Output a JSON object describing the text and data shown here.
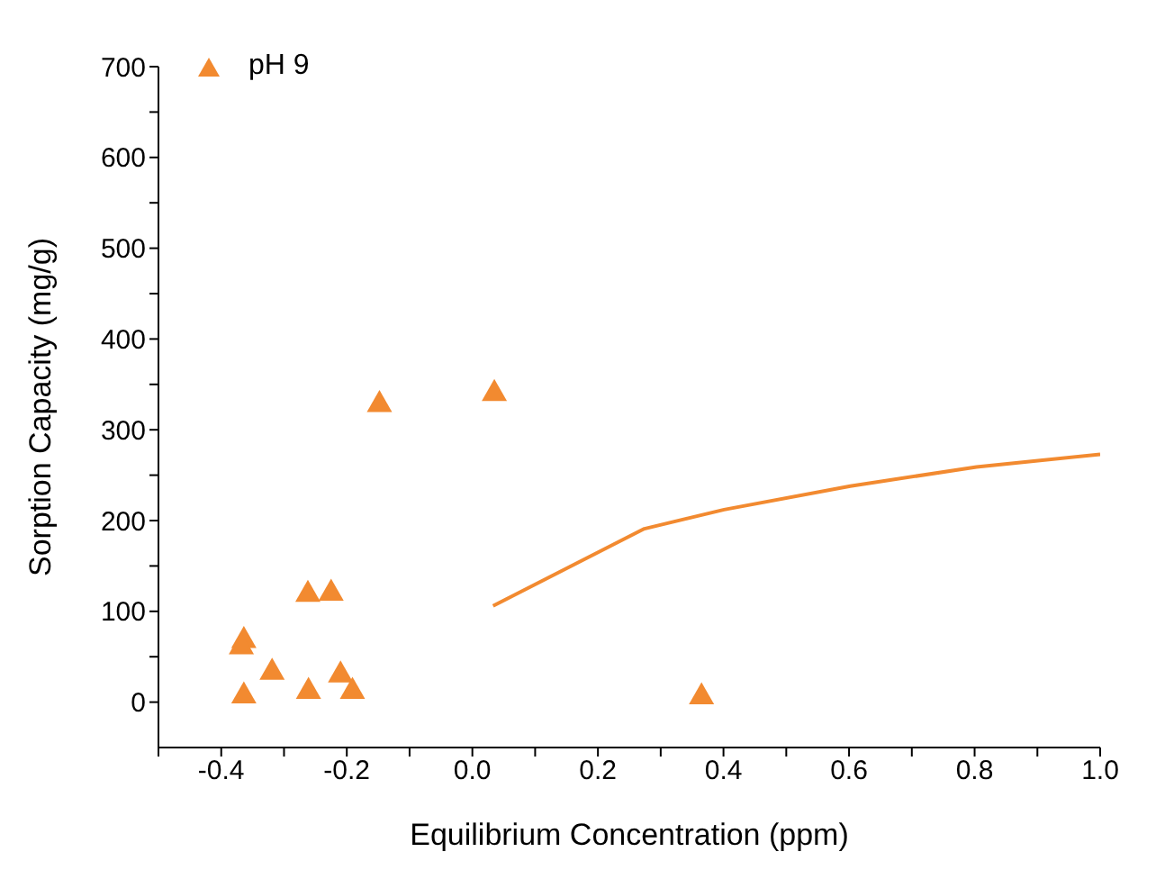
{
  "chart_data": {
    "type": "scatter",
    "xlabel": "Equilibrium Concentration (ppm)",
    "ylabel": "Sorption Capacity (mg/g)",
    "xlim": [
      -0.5,
      1.0
    ],
    "xticks": [
      {
        "value": -0.5,
        "label": null
      },
      {
        "value": -0.4,
        "label": "-0.4"
      },
      {
        "value": -0.3,
        "label": null
      },
      {
        "value": -0.2,
        "label": "-0.2"
      },
      {
        "value": -0.1,
        "label": null
      },
      {
        "value": 0,
        "label": "0.0"
      },
      {
        "value": 0.1,
        "label": null
      },
      {
        "value": 0.2,
        "label": "0.2"
      },
      {
        "value": 0.3,
        "label": null
      },
      {
        "value": 0.4,
        "label": "0.4"
      },
      {
        "value": 0.5,
        "label": null
      },
      {
        "value": 0.6,
        "label": "0.6"
      },
      {
        "value": 0.7,
        "label": null
      },
      {
        "value": 0.8,
        "label": "0.8"
      },
      {
        "value": 0.9,
        "label": null
      },
      {
        "value": 1.0,
        "label": "1.0"
      }
    ],
    "ylim": [
      -50,
      700
    ],
    "yticks": [
      0,
      {
        "value": 50,
        "label": null
      },
      100,
      {
        "value": 150,
        "label": null
      },
      200,
      {
        "value": 250,
        "label": null
      },
      300,
      {
        "value": 350,
        "label": null
      },
      400,
      {
        "value": 450,
        "label": null
      },
      500,
      {
        "value": 550,
        "label": null
      },
      600,
      {
        "value": 650,
        "label": null
      },
      700
    ],
    "marker": "triangle",
    "legend": "top left",
    "grid": false,
    "series": [
      {
        "name": "pH 9",
        "color": "#f28a30",
        "x": [
          -0.148,
          0.035,
          -0.262,
          -0.225,
          -0.364,
          -0.368,
          -0.319,
          -0.364,
          -0.261,
          -0.21,
          -0.191,
          0.365
        ],
        "values": [
          330,
          342,
          121,
          122,
          70,
          63,
          35,
          9,
          14,
          32,
          14,
          8
        ]
      },
      {
        "type": "line",
        "color": "#f28a30",
        "marker": "none",
        "x": [
          0.033,
          0.274,
          0.401,
          0.602,
          0.803,
          1.0
        ],
        "values": [
          106,
          191,
          212,
          238,
          259,
          273
        ]
      }
    ]
  }
}
